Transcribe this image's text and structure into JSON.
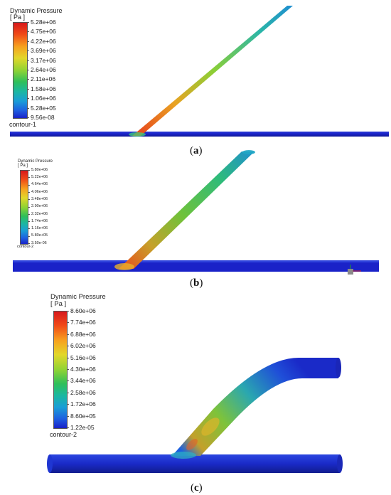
{
  "panels": [
    {
      "title": "Dynamic Pressure",
      "unit": "[ Pa ]",
      "ticks": [
        "5.28e+06",
        "4.75e+06",
        "4.22e+06",
        "3.69e+06",
        "3.17e+06",
        "2.64e+06",
        "2.11e+06",
        "1.58e+06",
        "1.06e+06",
        "5.28e+05",
        "9.56e-08"
      ],
      "contour": "contour-1",
      "caption_open": "(",
      "caption_letter": "a",
      "caption_close": ")"
    },
    {
      "title": "Dynamic Pressure",
      "unit": "[ Pa ]",
      "ticks": [
        "5.80e+06",
        "5.22e+06",
        "4.64e+06",
        "4.06e+06",
        "3.48e+06",
        "2.90e+06",
        "2.32e+06",
        "1.74e+06",
        "1.16e+06",
        "5.80e+05",
        "3.50e-06"
      ],
      "contour": "contour-2",
      "caption_open": "(",
      "caption_letter": "b",
      "caption_close": ")"
    },
    {
      "title": "Dynamic Pressure",
      "unit": "[ Pa ]",
      "ticks": [
        "8.60e+06",
        "7.74e+06",
        "6.88e+06",
        "6.02e+06",
        "5.16e+06",
        "4.30e+06",
        "3.44e+06",
        "2.58e+06",
        "1.72e+06",
        "8.60e+05",
        "1.22e-05"
      ],
      "contour": "contour-2",
      "caption_open": "(",
      "caption_letter": "c",
      "caption_close": ")"
    }
  ],
  "colormap": [
    "#d7191c",
    "#f04a18",
    "#f98c1e",
    "#f2c22b",
    "#c8de2d",
    "#7ad334",
    "#2fbf5a",
    "#1bb7a0",
    "#1a9ed6",
    "#1e5fe0",
    "#1a22c8"
  ]
}
